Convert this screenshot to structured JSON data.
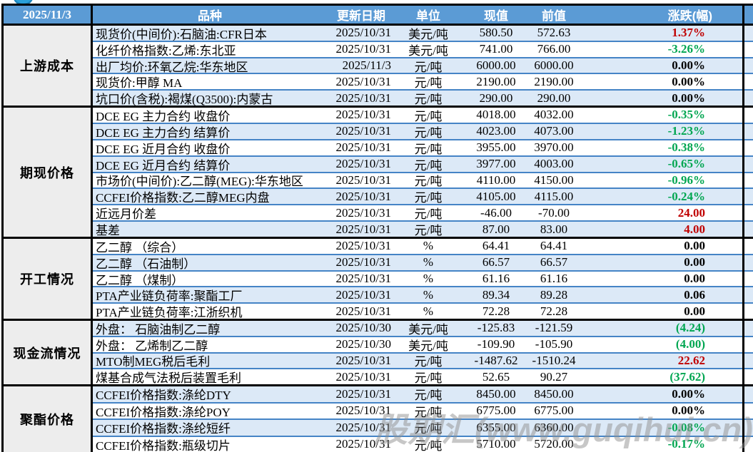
{
  "meta": {
    "report_date": "2025/11/3"
  },
  "colors": {
    "header_blue": "#5B9BD5",
    "stripe_blue": "#DCE9F7",
    "row_divider_blue": "#4584C6",
    "section_label_gray": "#EDEDED",
    "up_red": "#C00000",
    "down_green": "#00A651",
    "border_black": "#000000",
    "logo_blue": "#2A9FD8",
    "watermark_gray": "#8F8F8F"
  },
  "table": {
    "columns": [
      "品种",
      "更新日期",
      "单位",
      "现值",
      "前值",
      "涨跌(幅)"
    ],
    "sections": [
      {
        "label": "上游成本",
        "rows": [
          {
            "name": "现货价(中间价):石脑油:CFR日本",
            "date": "2025/10/31",
            "unit": "美元/吨",
            "current": "580.50",
            "previous": "572.63",
            "change": "1.37%",
            "change_color": "red"
          },
          {
            "name": "化纤价格指数:乙烯:东北亚",
            "date": "2025/10/31",
            "unit": "美元/吨",
            "current": "741.00",
            "previous": "766.00",
            "change": "-3.26%",
            "change_color": "green"
          },
          {
            "name": "出厂均价:环氧乙烷:华东地区",
            "date": "2025/11/3",
            "unit": "元/吨",
            "current": "6000.00",
            "previous": "6000.00",
            "change": "0.00%",
            "change_color": "black"
          },
          {
            "name": "现货价:甲醇 MA",
            "date": "2025/10/31",
            "unit": "元/吨",
            "current": "2190.00",
            "previous": "2190.00",
            "change": "0.00%",
            "change_color": "black"
          },
          {
            "name": "坑口价(含税):褐煤(Q3500):内蒙古",
            "date": "2025/10/31",
            "unit": "元/吨",
            "current": "290.00",
            "previous": "290.00",
            "change": "0.00%",
            "change_color": "black"
          }
        ]
      },
      {
        "label": "期现价格",
        "rows": [
          {
            "name": "DCE EG 主力合约 收盘价",
            "date": "2025/10/31",
            "unit": "元/吨",
            "current": "4018.00",
            "previous": "4032.00",
            "change": "-0.35%",
            "change_color": "green"
          },
          {
            "name": "DCE EG 主力合约 结算价",
            "date": "2025/10/31",
            "unit": "元/吨",
            "current": "4023.00",
            "previous": "4073.00",
            "change": "-1.23%",
            "change_color": "green"
          },
          {
            "name": "DCE EG 近月合约 收盘价",
            "date": "2025/10/31",
            "unit": "元/吨",
            "current": "3955.00",
            "previous": "3970.00",
            "change": "-0.38%",
            "change_color": "green"
          },
          {
            "name": "DCE EG 近月合约 结算价",
            "date": "2025/10/31",
            "unit": "元/吨",
            "current": "3977.00",
            "previous": "4003.00",
            "change": "-0.65%",
            "change_color": "green"
          },
          {
            "name": "市场价(中间价):乙二醇(MEG):华东地区",
            "date": "2025/10/31",
            "unit": "元/吨",
            "current": "4110.00",
            "previous": "4150.00",
            "change": "-0.96%",
            "change_color": "green"
          },
          {
            "name": "CCFEI价格指数:乙二醇MEG内盘",
            "date": "2025/10/31",
            "unit": "元/吨",
            "current": "4105.00",
            "previous": "4115.00",
            "change": "-0.24%",
            "change_color": "green"
          },
          {
            "name": "近远月价差",
            "date": "2025/10/31",
            "unit": "元/吨",
            "current": "-46.00",
            "previous": "-70.00",
            "change": "24.00",
            "change_color": "red"
          },
          {
            "name": "基差",
            "date": "2025/10/31",
            "unit": "元/吨",
            "current": "87.00",
            "previous": "83.00",
            "change": "4.00",
            "change_color": "red"
          }
        ]
      },
      {
        "label": "开工情况",
        "rows": [
          {
            "name": "乙二醇 （综合）",
            "date": "2025/10/31",
            "unit": "%",
            "current": "64.41",
            "previous": "64.41",
            "change": "0.00",
            "change_color": "black"
          },
          {
            "name": "乙二醇 （石油制）",
            "date": "2025/10/31",
            "unit": "%",
            "current": "66.57",
            "previous": "66.57",
            "change": "0.00",
            "change_color": "black"
          },
          {
            "name": "乙二醇 （煤制）",
            "date": "2025/10/31",
            "unit": "%",
            "current": "61.16",
            "previous": "61.16",
            "change": "0.00",
            "change_color": "black"
          },
          {
            "name": "PTA产业链负荷率:聚酯工厂",
            "date": "2025/10/31",
            "unit": "%",
            "current": "89.34",
            "previous": "89.28",
            "change": "0.06",
            "change_color": "black"
          },
          {
            "name": "PTA产业链负荷率:江浙织机",
            "date": "2025/10/31",
            "unit": "%",
            "current": "72.28",
            "previous": "72.28",
            "change": "0.00",
            "change_color": "black"
          }
        ]
      },
      {
        "label": "现金流情况",
        "rows": [
          {
            "name": "外盘： 石脑油制乙二醇",
            "date": "2025/10/30",
            "unit": "美元/吨",
            "current": "-125.83",
            "previous": "-121.59",
            "change": "(4.24)",
            "change_color": "green"
          },
          {
            "name": "外盘： 乙烯制乙二醇",
            "date": "2025/10/30",
            "unit": "美元/吨",
            "current": "-109.90",
            "previous": "-105.90",
            "change": "(4.00)",
            "change_color": "green"
          },
          {
            "name": "MTO制MEG税后毛利",
            "date": "2025/10/31",
            "unit": "元/吨",
            "current": "-1487.62",
            "previous": "-1510.24",
            "change": "22.62",
            "change_color": "red"
          },
          {
            "name": "煤基合成气法税后装置毛利",
            "date": "2025/10/31",
            "unit": "元/吨",
            "current": "52.65",
            "previous": "90.27",
            "change": "(37.62)",
            "change_color": "green"
          }
        ]
      },
      {
        "label": "聚酯价格",
        "rows": [
          {
            "name": "CCFEI价格指数:涤纶DTY",
            "date": "2025/10/31",
            "unit": "元/吨",
            "current": "8450.00",
            "previous": "8450.00",
            "change": "0.00%",
            "change_color": "black"
          },
          {
            "name": "CCFEI价格指数:涤纶POY",
            "date": "2025/10/31",
            "unit": "元/吨",
            "current": "6775.00",
            "previous": "6775.00",
            "change": "0.00%",
            "change_color": "black"
          },
          {
            "name": "CCFEI价格指数:涤纶短纤",
            "date": "2025/10/31",
            "unit": "元/吨",
            "current": "6355.00",
            "previous": "6360.00",
            "change": "-0.08%",
            "change_color": "green"
          },
          {
            "name": "CCFEI价格指数:瓶级切片",
            "date": "2025/10/31",
            "unit": "元/吨",
            "current": "5710.00",
            "previous": "5720.00",
            "change": "-0.17%",
            "change_color": "green"
          }
        ]
      }
    ]
  },
  "watermark": {
    "text": "股期汇(www.guqihui.cn)"
  }
}
